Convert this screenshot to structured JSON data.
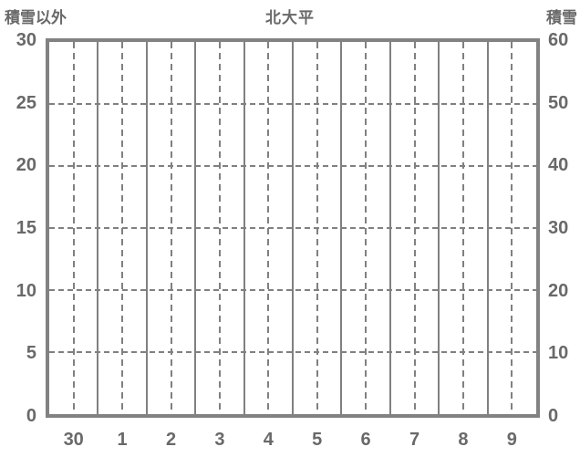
{
  "header": {
    "title": "北大平",
    "left_axis_title": "積雪以外",
    "right_axis_title": "積雪"
  },
  "chart_data": {
    "type": "line",
    "title": "北大平",
    "left_axis": {
      "label": "積雪以外",
      "tick_labels_top_to_bottom": [
        "30",
        "25",
        "20",
        "15",
        "10",
        "5",
        "0"
      ],
      "range": [
        0,
        30
      ]
    },
    "right_axis": {
      "label": "積雪",
      "tick_labels_top_to_bottom": [
        "60",
        "50",
        "40",
        "30",
        "20",
        "10",
        "0"
      ],
      "range": [
        0,
        60
      ]
    },
    "x_axis": {
      "tick_labels": [
        "30",
        "1",
        "2",
        "3",
        "4",
        "5",
        "6",
        "7",
        "8",
        "9"
      ]
    },
    "series": [],
    "grid": {
      "vertical_solid_segment_boundaries": true,
      "vertical_dashed_segment_centers": true,
      "horizontal_dashed_at_ticks": true
    },
    "colors": {
      "frame": "#828282",
      "gridline": "#808080",
      "text": "#696969",
      "background": "#ffffff"
    }
  }
}
